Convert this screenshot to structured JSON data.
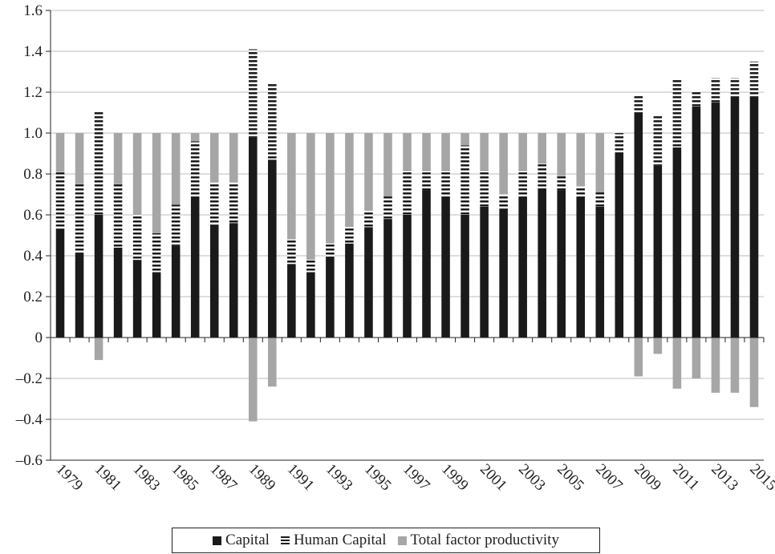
{
  "chart_data": {
    "type": "bar",
    "stacked": true,
    "categories": [
      "1979",
      "1980",
      "1981",
      "1982",
      "1983",
      "1984",
      "1985",
      "1986",
      "1987",
      "1988",
      "1989",
      "1990",
      "1991",
      "1992",
      "1993",
      "1994",
      "1995",
      "1996",
      "1997",
      "1998",
      "1999",
      "2000",
      "2001",
      "2002",
      "2003",
      "2004",
      "2005",
      "2006",
      "2007",
      "2008",
      "2009",
      "2010",
      "2011",
      "2012",
      "2013",
      "2014",
      "2015"
    ],
    "x_tick_labels": [
      "1979",
      "1981",
      "1983",
      "1985",
      "1987",
      "1989",
      "1991",
      "1993",
      "1995",
      "1997",
      "1999",
      "2001",
      "2003",
      "2005",
      "2007",
      "2009",
      "2011",
      "2013",
      "2015"
    ],
    "series": [
      {
        "name": "Capital",
        "color": "#1a1a1a",
        "pattern": "solid",
        "values": [
          0.53,
          0.41,
          0.6,
          0.44,
          0.38,
          0.32,
          0.45,
          0.69,
          0.55,
          0.56,
          0.98,
          0.87,
          0.36,
          0.32,
          0.39,
          0.46,
          0.54,
          0.58,
          0.6,
          0.72,
          0.69,
          0.6,
          0.64,
          0.63,
          0.69,
          0.73,
          0.72,
          0.69,
          0.64,
          0.9,
          1.1,
          0.84,
          0.93,
          1.13,
          1.15,
          1.18,
          1.18
        ]
      },
      {
        "name": "Human Capital",
        "color": "#1a1a1a",
        "pattern": "horizontal-stripes",
        "values": [
          0.28,
          0.34,
          0.51,
          0.31,
          0.22,
          0.19,
          0.2,
          0.27,
          0.21,
          0.2,
          0.43,
          0.37,
          0.12,
          0.06,
          0.07,
          0.08,
          0.08,
          0.11,
          0.22,
          0.1,
          0.13,
          0.34,
          0.18,
          0.07,
          0.13,
          0.12,
          0.07,
          0.05,
          0.07,
          0.1,
          0.09,
          0.25,
          0.33,
          0.08,
          0.12,
          0.09,
          0.17
        ]
      },
      {
        "name": "Total factor productivity",
        "color": "#a6a6a6",
        "pattern": "solid",
        "values": [
          0.19,
          0.25,
          -0.11,
          0.25,
          0.4,
          0.49,
          0.35,
          0.04,
          0.24,
          0.24,
          -0.41,
          -0.24,
          0.52,
          0.62,
          0.54,
          0.46,
          0.38,
          0.31,
          0.18,
          0.18,
          0.18,
          0.06,
          0.18,
          0.3,
          0.18,
          0.15,
          0.21,
          0.26,
          0.29,
          0,
          -0.19,
          -0.08,
          -0.25,
          -0.2,
          -0.27,
          -0.27,
          -0.34
        ]
      }
    ],
    "title": "",
    "xlabel": "",
    "ylabel": "",
    "ylim": [
      -0.6,
      1.6
    ],
    "y_ticks": [
      -0.6,
      -0.4,
      -0.2,
      0,
      0.2,
      0.4,
      0.6,
      0.8,
      1.0,
      1.2,
      1.4,
      1.6
    ],
    "y_tick_labels": [
      "–0.6",
      "–0.4",
      "–0.2",
      "0",
      "0.2",
      "0.4",
      "0.6",
      "0.8",
      "1.0",
      "1.2",
      "1.4",
      "1.6"
    ],
    "grid": "horizontal",
    "legend": "bottom",
    "legend_items": [
      "Capital",
      "Human Capital",
      "Total factor productivity"
    ]
  }
}
